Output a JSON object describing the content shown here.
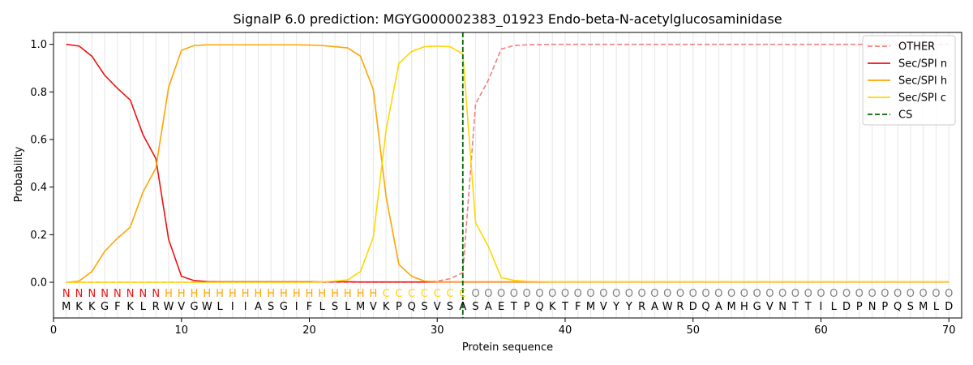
{
  "chart_data": {
    "type": "line",
    "title": "SignalP 6.0 prediction: MGYG000002383_01923 Endo-beta-N-acetylglucosaminidase",
    "xlabel": "Protein sequence",
    "ylabel": "Probability",
    "xlim": [
      0,
      71
    ],
    "ylim": [
      -0.15,
      1.05
    ],
    "xticks": [
      0,
      10,
      20,
      30,
      40,
      50,
      60,
      70
    ],
    "yticks": [
      0.0,
      0.2,
      0.4,
      0.6,
      0.8,
      1.0
    ],
    "ytick_labels": [
      "0.0",
      "0.2",
      "0.4",
      "0.6",
      "0.8",
      "1.0"
    ],
    "x": [
      1,
      2,
      3,
      4,
      5,
      6,
      7,
      8,
      9,
      10,
      11,
      12,
      13,
      14,
      15,
      16,
      17,
      18,
      19,
      20,
      21,
      22,
      23,
      24,
      25,
      26,
      27,
      28,
      29,
      30,
      31,
      32,
      33,
      34,
      35,
      36,
      37,
      38,
      39,
      40,
      41,
      42,
      43,
      44,
      45,
      46,
      47,
      48,
      49,
      50,
      51,
      52,
      53,
      54,
      55,
      56,
      57,
      58,
      59,
      60,
      61,
      62,
      63,
      64,
      65,
      66,
      67,
      68,
      69,
      70
    ],
    "sequence": [
      "M",
      "K",
      "K",
      "G",
      "F",
      "K",
      "L",
      "R",
      "W",
      "V",
      "G",
      "W",
      "L",
      "I",
      "I",
      "A",
      "S",
      "G",
      "I",
      "F",
      "L",
      "S",
      "L",
      "M",
      "V",
      "K",
      "P",
      "Q",
      "S",
      "V",
      "S",
      "A",
      "S",
      "A",
      "E",
      "T",
      "P",
      "Q",
      "K",
      "T",
      "F",
      "M",
      "V",
      "Y",
      "Y",
      "R",
      "A",
      "W",
      "R",
      "D",
      "Q",
      "A",
      "M",
      "H",
      "G",
      "V",
      "N",
      "T",
      "T",
      "I",
      "L",
      "D",
      "P",
      "N",
      "P",
      "Q",
      "S",
      "M",
      "L",
      "D"
    ],
    "region_labels": [
      "N",
      "N",
      "N",
      "N",
      "N",
      "N",
      "N",
      "N",
      "H",
      "H",
      "H",
      "H",
      "H",
      "H",
      "H",
      "H",
      "H",
      "H",
      "H",
      "H",
      "H",
      "H",
      "H",
      "H",
      "H",
      "C",
      "C",
      "C",
      "C",
      "C",
      "C",
      "C",
      "O",
      "O",
      "O",
      "O",
      "O",
      "O",
      "O",
      "O",
      "O",
      "O",
      "O",
      "O",
      "O",
      "O",
      "O",
      "O",
      "O",
      "O",
      "O",
      "O",
      "O",
      "O",
      "O",
      "O",
      "O",
      "O",
      "O",
      "O",
      "O",
      "O",
      "O",
      "O",
      "O",
      "O",
      "O",
      "O",
      "O",
      "O"
    ],
    "region_colors": {
      "N": "#ee1111",
      "H": "#ffa500",
      "C": "#ffd700",
      "O": "#808080"
    },
    "series": [
      {
        "name": "OTHER",
        "color": "#f08080",
        "dash": true,
        "values": [
          0,
          0,
          0,
          0,
          0,
          0,
          0,
          0,
          0,
          0,
          0,
          0,
          0,
          0,
          0,
          0,
          0,
          0,
          0,
          0,
          0,
          0,
          0,
          0,
          0,
          0,
          0,
          0,
          0,
          0.005,
          0.015,
          0.04,
          0.75,
          0.85,
          0.98,
          0.995,
          0.998,
          0.999,
          1,
          1,
          1,
          1,
          1,
          1,
          1,
          1,
          1,
          1,
          1,
          1,
          1,
          1,
          1,
          1,
          1,
          1,
          1,
          1,
          1,
          1,
          1,
          1,
          1,
          1,
          1,
          1,
          1,
          1,
          1,
          1
        ]
      },
      {
        "name": "Sec/SPI n",
        "color": "#ee1111",
        "dash": false,
        "values": [
          1.0,
          0.993,
          0.95,
          0.87,
          0.815,
          0.766,
          0.62,
          0.52,
          0.18,
          0.025,
          0.007,
          0.003,
          0.002,
          0.002,
          0.002,
          0.002,
          0.002,
          0.002,
          0.002,
          0.002,
          0.002,
          0.002,
          0.002,
          0.001,
          0.001,
          0.001,
          0.001,
          0.001,
          0.001,
          0.001,
          0.001,
          0.001,
          0.001,
          0.001,
          0.001,
          0.001,
          0.001,
          0.001,
          0.001,
          0.001,
          0.001,
          0.001,
          0.001,
          0.001,
          0.001,
          0.001,
          0.001,
          0.001,
          0.001,
          0.001,
          0.001,
          0.001,
          0.001,
          0.001,
          0.001,
          0.001,
          0.001,
          0.001,
          0.001,
          0.001,
          0.001,
          0.001,
          0.001,
          0.001,
          0.001,
          0.001,
          0.001,
          0.001,
          0.001,
          0.001
        ]
      },
      {
        "name": "Sec/SPI h",
        "color": "#ffa500",
        "dash": false,
        "values": [
          0.0,
          0.005,
          0.045,
          0.13,
          0.185,
          0.232,
          0.38,
          0.48,
          0.82,
          0.975,
          0.995,
          0.998,
          0.998,
          0.998,
          0.998,
          0.998,
          0.998,
          0.998,
          0.998,
          0.997,
          0.995,
          0.99,
          0.985,
          0.95,
          0.81,
          0.36,
          0.075,
          0.025,
          0.005,
          0.002,
          0.002,
          0.002,
          0.002,
          0.002,
          0.002,
          0.002,
          0.002,
          0.002,
          0.002,
          0.002,
          0.002,
          0.002,
          0.002,
          0.002,
          0.002,
          0.002,
          0.002,
          0.002,
          0.002,
          0.002,
          0.002,
          0.002,
          0.002,
          0.002,
          0.002,
          0.002,
          0.002,
          0.002,
          0.002,
          0.002,
          0.002,
          0.002,
          0.002,
          0.002,
          0.002,
          0.002,
          0.002,
          0.002,
          0.002,
          0.002
        ]
      },
      {
        "name": "Sec/SPI c",
        "color": "#ffd700",
        "dash": false,
        "values": [
          0,
          0,
          0,
          0,
          0,
          0,
          0,
          0,
          0,
          0,
          0,
          0,
          0,
          0,
          0,
          0,
          0,
          0,
          0,
          0,
          0.002,
          0.005,
          0.01,
          0.045,
          0.19,
          0.64,
          0.92,
          0.97,
          0.99,
          0.993,
          0.99,
          0.96,
          0.25,
          0.15,
          0.02,
          0.008,
          0.004,
          0.003,
          0.002,
          0.002,
          0.002,
          0.002,
          0.002,
          0.002,
          0.002,
          0.002,
          0.002,
          0.002,
          0.002,
          0.002,
          0.002,
          0.002,
          0.002,
          0.002,
          0.002,
          0.002,
          0.002,
          0.002,
          0.002,
          0.002,
          0.002,
          0.002,
          0.002,
          0.002,
          0.002,
          0.002,
          0.002,
          0.002,
          0.002,
          0.002
        ]
      }
    ],
    "cs": {
      "name": "CS",
      "x": 32,
      "color": "#006400"
    },
    "legend": {
      "position": "top-right",
      "entries": [
        "OTHER",
        "Sec/SPI n",
        "Sec/SPI h",
        "Sec/SPI c",
        "CS"
      ]
    },
    "grid": "vertical per residue"
  }
}
